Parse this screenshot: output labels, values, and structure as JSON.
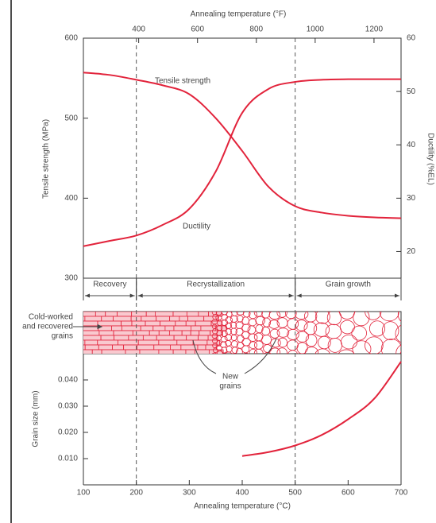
{
  "chart_data": [
    {
      "type": "line",
      "x2label": "Annealing temperature (°F)",
      "x2lim": [
        212,
        1292
      ],
      "x2ticks": [
        400,
        600,
        800,
        1000,
        1200
      ],
      "xlim": [
        100,
        700
      ],
      "ylabel": "Tensile strength (MPa)",
      "ylim": [
        300,
        600
      ],
      "yticks": [
        300,
        400,
        500,
        600
      ],
      "y2label": "Ductility (%EL)",
      "y2lim": [
        15,
        60
      ],
      "y2ticks": [
        20,
        30,
        40,
        50,
        60
      ],
      "x": [
        100,
        150,
        200,
        250,
        300,
        350,
        400,
        450,
        500,
        550,
        600,
        650,
        700
      ],
      "series": [
        {
          "name": "Tensile strength",
          "color": "#e2233b",
          "values": [
            557,
            554,
            548,
            541,
            530,
            500,
            459,
            414,
            390,
            382,
            378,
            376,
            375
          ]
        },
        {
          "name": "Ductility",
          "color": "#e2233b",
          "axis": "y2",
          "values": [
            21,
            22,
            23,
            25,
            28,
            35,
            46,
            50.5,
            51.8,
            52.2,
            52.3,
            52.3,
            52.3
          ]
        }
      ],
      "regions": [
        {
          "label": "Recovery",
          "from": 100,
          "to": 200
        },
        {
          "label": "Recrystallization",
          "from": 200,
          "to": 500
        },
        {
          "label": "Grain growth",
          "from": 500,
          "to": 700
        }
      ],
      "microstructure_labels": [
        {
          "lines": [
            "Cold-worked",
            "and recovered",
            "grains"
          ]
        },
        {
          "lines": [
            "New",
            "grains"
          ]
        }
      ]
    },
    {
      "type": "line",
      "xlabel": "Annealing temperature (°C)",
      "xlim": [
        100,
        700
      ],
      "xticks": [
        100,
        200,
        300,
        400,
        500,
        600,
        700
      ],
      "ylabel": "Grain size (mm)",
      "ylim": [
        0,
        0.05
      ],
      "yticks": [
        {
          "value": 0.01,
          "label": "0.010"
        },
        {
          "value": 0.02,
          "label": "0.020"
        },
        {
          "value": 0.03,
          "label": "0.030"
        },
        {
          "value": 0.04,
          "label": "0.040"
        }
      ],
      "x": [
        400,
        450,
        500,
        550,
        600,
        650,
        700
      ],
      "series": [
        {
          "color": "#e2233b",
          "values": [
            0.011,
            0.0125,
            0.015,
            0.019,
            0.025,
            0.033,
            0.047
          ]
        }
      ]
    }
  ]
}
